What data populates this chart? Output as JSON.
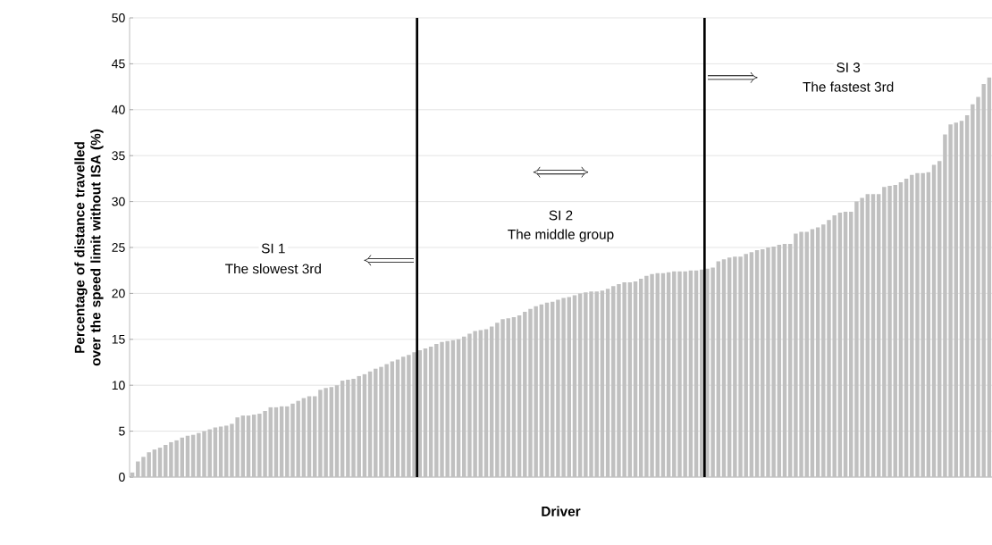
{
  "chart_data": {
    "type": "bar",
    "ylabel": "Percentage of distance travelled over the speed limit without ISA (%)",
    "xlabel": "Driver",
    "categories": [
      null,
      null,
      null,
      null,
      null,
      null,
      null,
      null,
      null,
      null,
      null,
      null,
      null,
      null,
      null,
      null,
      null,
      null,
      null,
      null,
      null,
      null,
      null,
      null,
      null,
      null,
      null,
      null,
      null,
      null,
      null,
      null,
      null,
      null,
      null,
      null,
      null,
      null,
      null,
      null,
      null,
      null,
      null,
      null,
      null,
      null,
      null,
      null,
      null,
      null,
      null,
      null,
      null,
      null,
      null,
      null,
      null,
      null,
      null,
      null,
      null,
      null,
      null,
      null,
      null,
      null,
      null,
      null,
      null,
      null,
      null,
      null,
      null,
      null,
      null,
      null,
      null,
      null,
      null,
      null,
      null,
      null,
      null,
      null,
      null,
      null,
      null,
      null,
      null,
      null,
      null,
      null,
      null,
      null,
      null,
      null,
      null,
      null,
      null,
      null,
      null,
      null,
      null,
      null,
      null,
      null,
      null,
      null,
      null,
      null,
      null,
      null,
      null,
      null,
      null,
      null,
      null,
      null,
      null,
      null,
      null,
      null,
      null,
      null,
      null,
      null,
      null,
      null,
      null,
      null,
      null,
      null,
      null,
      null,
      null,
      null,
      null,
      null,
      null,
      null,
      null,
      null,
      null,
      null,
      null,
      null,
      null,
      null,
      null,
      null,
      null,
      null,
      null,
      null,
      null,
      null
    ],
    "values": [
      0.5,
      1.7,
      2.2,
      2.7,
      3.0,
      3.2,
      3.5,
      3.8,
      4.0,
      4.3,
      4.5,
      4.6,
      4.8,
      5.0,
      5.2,
      5.4,
      5.5,
      5.6,
      5.8,
      6.5,
      6.7,
      6.7,
      6.8,
      6.9,
      7.2,
      7.6,
      7.6,
      7.7,
      7.7,
      8.0,
      8.3,
      8.6,
      8.8,
      8.8,
      9.5,
      9.7,
      9.8,
      10.0,
      10.5,
      10.6,
      10.7,
      11.0,
      11.2,
      11.5,
      11.8,
      12.0,
      12.3,
      12.6,
      12.8,
      13.1,
      13.3,
      13.6,
      13.8,
      14.0,
      14.2,
      14.5,
      14.7,
      14.8,
      14.9,
      15.0,
      15.3,
      15.6,
      15.9,
      16.0,
      16.1,
      16.4,
      16.8,
      17.2,
      17.3,
      17.4,
      17.6,
      18.0,
      18.3,
      18.6,
      18.8,
      19.0,
      19.1,
      19.3,
      19.5,
      19.6,
      19.8,
      20.0,
      20.1,
      20.2,
      20.2,
      20.3,
      20.5,
      20.8,
      21.0,
      21.2,
      21.2,
      21.3,
      21.6,
      21.9,
      22.1,
      22.2,
      22.2,
      22.3,
      22.4,
      22.4,
      22.4,
      22.5,
      22.5,
      22.6,
      22.7,
      22.8,
      23.5,
      23.7,
      23.9,
      24.0,
      24.0,
      24.3,
      24.5,
      24.7,
      24.8,
      25.0,
      25.1,
      25.3,
      25.4,
      25.4,
      26.5,
      26.7,
      26.7,
      27.0,
      27.2,
      27.5,
      28.0,
      28.5,
      28.8,
      28.9,
      28.9,
      30.0,
      30.4,
      30.8,
      30.8,
      30.8,
      31.6,
      31.7,
      31.8,
      32.1,
      32.5,
      32.9,
      33.1,
      33.1,
      33.2,
      34.0,
      34.4,
      37.3,
      38.4,
      38.6,
      38.8,
      39.4,
      40.6,
      41.4,
      42.8,
      43.5
    ],
    "color": "#c0c0c0",
    "ylim": [
      0,
      50
    ],
    "yticks": [
      0,
      5,
      10,
      15,
      20,
      25,
      30,
      35,
      40,
      45,
      50
    ],
    "grid": "y",
    "annotations": [
      "SI 1",
      "The slowest 3rd",
      "SI 2",
      "The middle group",
      "SI 3",
      "The fastest 3rd"
    ]
  }
}
